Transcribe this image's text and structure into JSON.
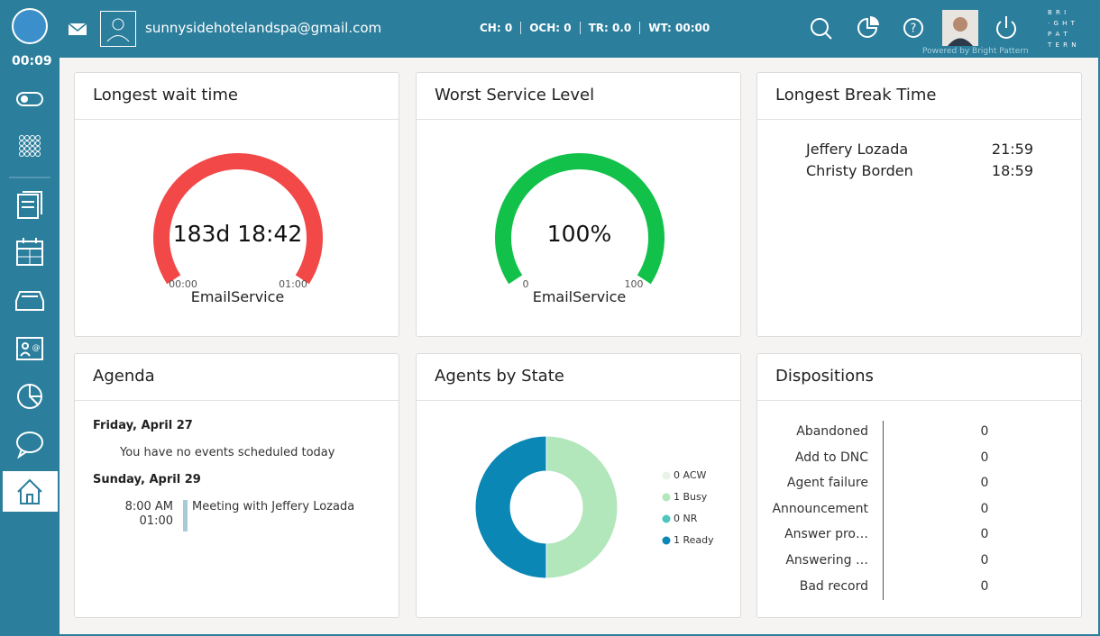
{
  "header": {
    "timer": "00:09",
    "email": "sunnysidehotelandspa@gmail.com",
    "stats": [
      "CH: 0",
      "OCH: 0",
      "TR: 0.0",
      "WT: 00:00"
    ],
    "powered": "Powered by Bright Pattern",
    "logo": [
      "B R I",
      "· G H T",
      "P A T",
      "T E R N"
    ]
  },
  "wait_time": {
    "title": "Longest wait time",
    "value": "183d 18:42",
    "min": "00:00",
    "max": "01:00",
    "label": "EmailService"
  },
  "service_level": {
    "title": "Worst Service Level",
    "value": "100%",
    "min": 0,
    "max": 100,
    "label": "EmailService"
  },
  "break_time": {
    "title": "Longest Break Time",
    "rows": [
      [
        "Jeffery Lozada",
        "21:59"
      ],
      [
        "Christy Borden",
        "18:59"
      ]
    ]
  },
  "agenda": {
    "title": "Agenda",
    "days": [
      {
        "date": "Friday, April 27",
        "note": "You have no events scheduled today"
      },
      {
        "date": "Sunday, April 29",
        "events": [
          {
            "start": "8:00 AM",
            "end": "01:00",
            "title": "Meeting with Jeffery Lozada"
          }
        ]
      }
    ]
  },
  "agents_by_state": {
    "title": "Agents by State",
    "chart_data": {
      "type": "pie",
      "categories": [
        "ACW",
        "Busy",
        "NR",
        "Ready"
      ],
      "values": [
        0,
        1,
        0,
        1
      ],
      "colors": [
        "#e6f3e6",
        "#b2e6bb",
        "#4cc6bf",
        "#0a87b5"
      ]
    }
  },
  "dispositions": {
    "title": "Dispositions",
    "rows": [
      [
        "Abandoned",
        0
      ],
      [
        "Add to DNC",
        0
      ],
      [
        "Agent failure",
        0
      ],
      [
        "Announcement",
        0
      ],
      [
        "Answer pro…",
        0
      ],
      [
        "Answering …",
        0
      ],
      [
        "Bad record",
        0
      ]
    ]
  }
}
